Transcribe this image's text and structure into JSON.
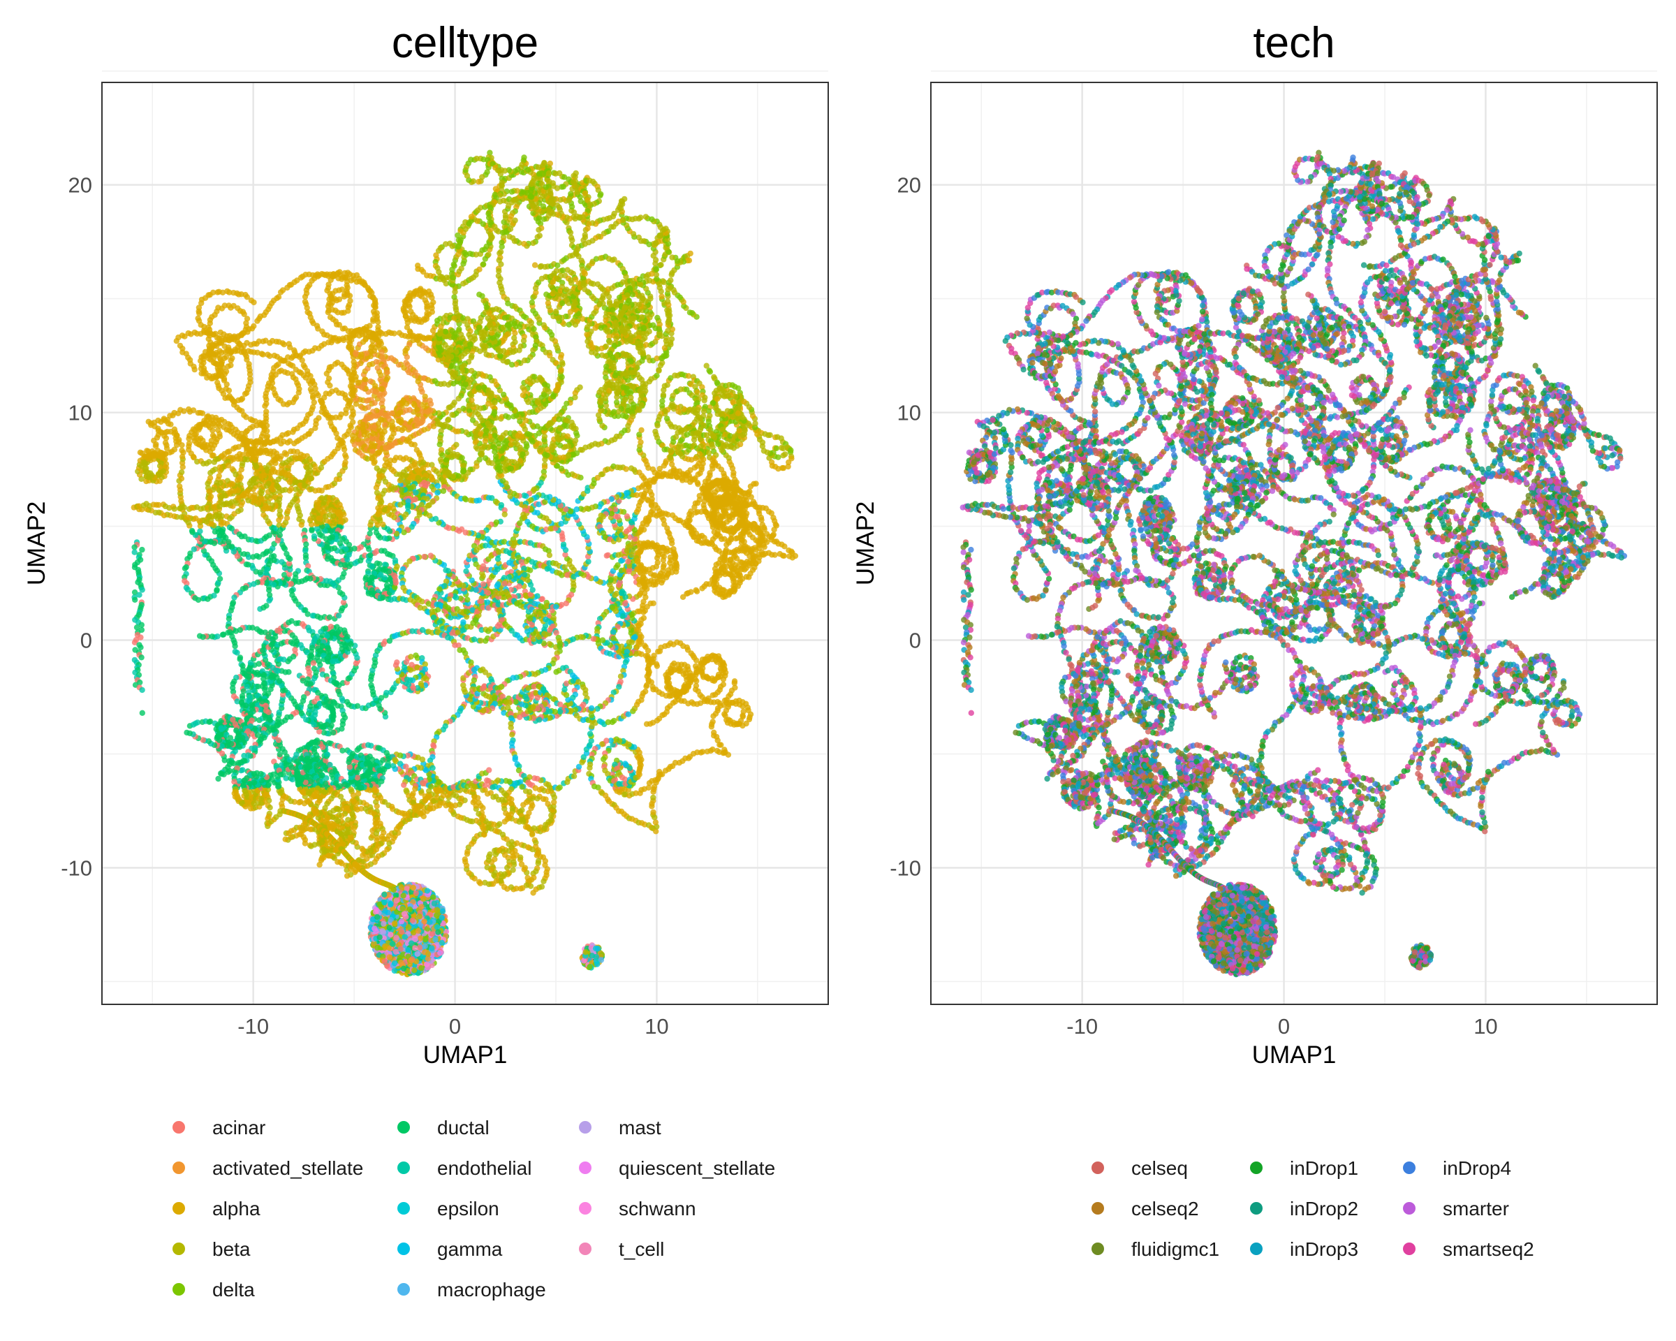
{
  "chart_data": [
    {
      "type": "scatter",
      "title": "celltype",
      "xlabel": "UMAP1",
      "ylabel": "UMAP2",
      "xlim": [
        -17.5,
        18.5
      ],
      "ylim": [
        -16,
        24.5
      ],
      "xticks": [
        -10,
        0,
        10
      ],
      "yticks": [
        -10,
        0,
        10,
        20
      ],
      "xtick_labels": [
        "-10",
        "0",
        "10"
      ],
      "ytick_labels": [
        "-10",
        "0",
        "10",
        "20"
      ],
      "grid": true,
      "legend_position": "bottom",
      "series": [
        {
          "name": "acinar",
          "color": "#F8766D"
        },
        {
          "name": "activated_stellate",
          "color": "#F1962F"
        },
        {
          "name": "alpha",
          "color": "#DCAA00"
        },
        {
          "name": "beta",
          "color": "#B4B800"
        },
        {
          "name": "delta",
          "color": "#7CC600"
        },
        {
          "name": "ductal",
          "color": "#00C864"
        },
        {
          "name": "endothelial",
          "color": "#00C9A7"
        },
        {
          "name": "epsilon",
          "color": "#00CBD6"
        },
        {
          "name": "gamma",
          "color": "#00C2E6"
        },
        {
          "name": "macrophage",
          "color": "#4FB7EE"
        },
        {
          "name": "mast",
          "color": "#B79FE9"
        },
        {
          "name": "quiescent_stellate",
          "color": "#EF7DF0"
        },
        {
          "name": "schwann",
          "color": "#FB83E0"
        },
        {
          "name": "t_cell",
          "color": "#F285B8"
        }
      ]
    },
    {
      "type": "scatter",
      "title": "tech",
      "xlabel": "UMAP1",
      "ylabel": "UMAP2",
      "xlim": [
        -17.5,
        18.5
      ],
      "ylim": [
        -16,
        24.5
      ],
      "xticks": [
        -10,
        0,
        10
      ],
      "yticks": [
        -10,
        0,
        10,
        20
      ],
      "xtick_labels": [
        "-10",
        "0",
        "10"
      ],
      "ytick_labels": [
        "-10",
        "0",
        "10",
        "20"
      ],
      "grid": true,
      "legend_position": "bottom",
      "series": [
        {
          "name": "celseq",
          "color": "#D2625C"
        },
        {
          "name": "celseq2",
          "color": "#B57B1E"
        },
        {
          "name": "fluidigmc1",
          "color": "#6E8B22"
        },
        {
          "name": "inDrop1",
          "color": "#13A426"
        },
        {
          "name": "inDrop2",
          "color": "#0E9C80"
        },
        {
          "name": "inDrop3",
          "color": "#0AA1C0"
        },
        {
          "name": "inDrop4",
          "color": "#3C7FDE"
        },
        {
          "name": "smarter",
          "color": "#BC5BDA"
        },
        {
          "name": "smartseq2",
          "color": "#E0409F"
        }
      ]
    }
  ]
}
